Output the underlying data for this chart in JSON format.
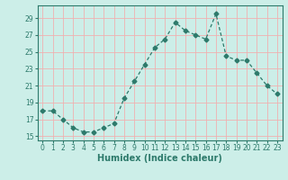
{
  "x": [
    0,
    1,
    2,
    3,
    4,
    5,
    6,
    7,
    8,
    9,
    10,
    11,
    12,
    13,
    14,
    15,
    16,
    17,
    18,
    19,
    20,
    21,
    22,
    23
  ],
  "y": [
    18,
    18,
    17,
    16,
    15.5,
    15.5,
    16,
    16.5,
    19.5,
    21.5,
    23.5,
    25.5,
    26.5,
    28.5,
    27.5,
    27,
    26.5,
    29.5,
    24.5,
    24,
    24,
    22.5,
    21,
    20
  ],
  "line_color": "#2d7a6b",
  "marker": "D",
  "marker_size": 2.5,
  "bg_color": "#cceee8",
  "grid_color": "#f0b0b0",
  "xlabel": "Humidex (Indice chaleur)",
  "xlim": [
    -0.5,
    23.5
  ],
  "ylim": [
    14.5,
    30.5
  ],
  "yticks": [
    15,
    17,
    19,
    21,
    23,
    25,
    27,
    29
  ],
  "xticks": [
    0,
    1,
    2,
    3,
    4,
    5,
    6,
    7,
    8,
    9,
    10,
    11,
    12,
    13,
    14,
    15,
    16,
    17,
    18,
    19,
    20,
    21,
    22,
    23
  ],
  "tick_fontsize": 5.5,
  "label_fontsize": 7
}
